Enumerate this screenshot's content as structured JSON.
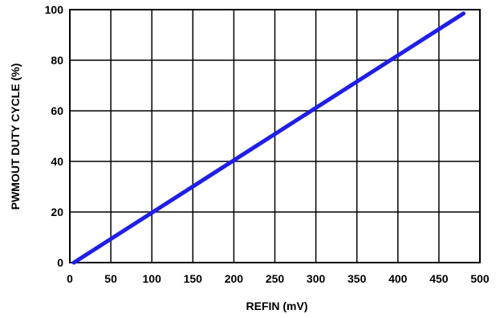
{
  "chart_data": {
    "type": "line",
    "title": "",
    "xlabel": "REFIN (mV)",
    "ylabel": "PWMOUT DUTY CYCLE (%)",
    "xlim": [
      0,
      500
    ],
    "ylim": [
      0,
      100
    ],
    "x_ticks": [
      0,
      50,
      100,
      150,
      200,
      250,
      300,
      350,
      400,
      450,
      500
    ],
    "y_ticks": [
      0,
      20,
      40,
      60,
      80,
      100
    ],
    "grid": true,
    "legend": "none",
    "series": [
      {
        "color": "#1f1fe6",
        "x": [
          5,
          480
        ],
        "y": [
          0,
          98.5
        ]
      }
    ]
  }
}
